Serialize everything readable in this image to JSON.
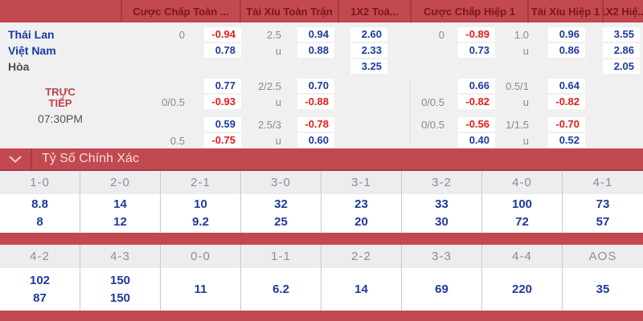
{
  "colors": {
    "accent_red": "#c24950",
    "header_text_red": "#7d151b",
    "divider_red": "#a63a42",
    "odds_blue": "#1c3a9e",
    "odds_negative_red": "#e81b1b",
    "line_gray": "#8a8a90",
    "panel_bg": "#f0f0f1",
    "score_header_text": "#8c8c94"
  },
  "odds_table": {
    "column_headers": [
      "Cược Chấp Toàn ...",
      "Tài Xỉu Toàn Trận",
      "1X2 Toà...",
      "Cược Chấp Hiệp 1",
      "Tài Xỉu Hiệp 1",
      "1X2 Hiệ..."
    ],
    "live_label": "TRỰC TIẾP",
    "kickoff_time": "07:30PM",
    "rows": [
      {
        "label": "Thái Lan",
        "label_style": "team",
        "cells": [
          {
            "t": "line",
            "v": "0"
          },
          {
            "t": "odds",
            "v": "-0.94"
          },
          {
            "t": "line",
            "v": "2.5"
          },
          {
            "t": "odds",
            "v": "0.94"
          },
          {
            "t": "odds",
            "v": "2.60"
          },
          {
            "t": "line",
            "v": "0"
          },
          {
            "t": "odds",
            "v": "-0.89"
          },
          {
            "t": "line",
            "v": "1.0"
          },
          {
            "t": "odds",
            "v": "0.96"
          },
          {
            "t": "odds",
            "v": "3.55"
          }
        ]
      },
      {
        "label": "Việt Nam",
        "label_style": "team",
        "cells": [
          {
            "t": "line",
            "v": ""
          },
          {
            "t": "odds",
            "v": "0.78"
          },
          {
            "t": "line",
            "v": "u"
          },
          {
            "t": "odds",
            "v": "0.88"
          },
          {
            "t": "odds",
            "v": "2.33"
          },
          {
            "t": "line",
            "v": ""
          },
          {
            "t": "odds",
            "v": "0.73"
          },
          {
            "t": "line",
            "v": "u"
          },
          {
            "t": "odds",
            "v": "0.86"
          },
          {
            "t": "odds",
            "v": "2.86"
          }
        ]
      },
      {
        "label": "Hòa",
        "label_style": "draw",
        "cells": [
          {
            "t": "line",
            "v": ""
          },
          {
            "t": "odds",
            "v": ""
          },
          {
            "t": "line",
            "v": ""
          },
          {
            "t": "odds",
            "v": ""
          },
          {
            "t": "odds",
            "v": "3.25"
          },
          {
            "t": "line",
            "v": ""
          },
          {
            "t": "odds",
            "v": ""
          },
          {
            "t": "line",
            "v": ""
          },
          {
            "t": "odds",
            "v": ""
          },
          {
            "t": "odds",
            "v": "2.05"
          }
        ]
      },
      {
        "gap": true
      },
      {
        "cells": [
          {
            "t": "line",
            "v": ""
          },
          {
            "t": "odds",
            "v": "0.77"
          },
          {
            "t": "line",
            "v": "2/2.5"
          },
          {
            "t": "odds",
            "v": "0.70"
          },
          {
            "t": "odds",
            "v": ""
          },
          {
            "t": "line",
            "v": ""
          },
          {
            "t": "odds",
            "v": "0.66"
          },
          {
            "t": "line",
            "v": "0.5/1"
          },
          {
            "t": "odds",
            "v": "0.64"
          },
          {
            "t": "odds",
            "v": ""
          }
        ]
      },
      {
        "cells": [
          {
            "t": "line",
            "v": "0/0.5"
          },
          {
            "t": "odds",
            "v": "-0.93"
          },
          {
            "t": "line",
            "v": "u"
          },
          {
            "t": "odds",
            "v": "-0.88"
          },
          {
            "t": "odds",
            "v": ""
          },
          {
            "t": "line",
            "v": "0/0.5"
          },
          {
            "t": "odds",
            "v": "-0.82"
          },
          {
            "t": "line",
            "v": "u"
          },
          {
            "t": "odds",
            "v": "-0.82"
          },
          {
            "t": "odds",
            "v": ""
          }
        ]
      },
      {
        "gap": true,
        "wide": true
      },
      {
        "cells": [
          {
            "t": "line",
            "v": ""
          },
          {
            "t": "odds",
            "v": "0.59"
          },
          {
            "t": "line",
            "v": "2.5/3"
          },
          {
            "t": "odds",
            "v": "-0.78"
          },
          {
            "t": "odds",
            "v": ""
          },
          {
            "t": "line",
            "v": "0/0.5"
          },
          {
            "t": "odds",
            "v": "-0.56"
          },
          {
            "t": "line",
            "v": "1/1.5"
          },
          {
            "t": "odds",
            "v": "-0.70"
          },
          {
            "t": "odds",
            "v": ""
          }
        ]
      },
      {
        "cells": [
          {
            "t": "line",
            "v": "0.5"
          },
          {
            "t": "odds",
            "v": "-0.75"
          },
          {
            "t": "line",
            "v": "u"
          },
          {
            "t": "odds",
            "v": "0.60"
          },
          {
            "t": "odds",
            "v": ""
          },
          {
            "t": "line",
            "v": ""
          },
          {
            "t": "odds",
            "v": "0.40"
          },
          {
            "t": "line",
            "v": "u"
          },
          {
            "t": "odds",
            "v": "0.52"
          },
          {
            "t": "odds",
            "v": ""
          }
        ]
      }
    ]
  },
  "correct_score": {
    "title": "Tỷ Số Chính Xác",
    "groups": [
      {
        "scores": [
          "1-0",
          "2-0",
          "2-1",
          "3-0",
          "3-1",
          "3-2",
          "4-0",
          "4-1"
        ],
        "odds": [
          [
            "8.8",
            "8"
          ],
          [
            "14",
            "12"
          ],
          [
            "10",
            "9.2"
          ],
          [
            "32",
            "25"
          ],
          [
            "23",
            "20"
          ],
          [
            "33",
            "30"
          ],
          [
            "100",
            "72"
          ],
          [
            "73",
            "57"
          ]
        ]
      },
      {
        "scores": [
          "4-2",
          "4-3",
          "0-0",
          "1-1",
          "2-2",
          "3-3",
          "4-4",
          "AOS"
        ],
        "odds": [
          [
            "102",
            "87"
          ],
          [
            "150",
            "150"
          ],
          [
            "11"
          ],
          [
            "6.2"
          ],
          [
            "14"
          ],
          [
            "69"
          ],
          [
            "220"
          ],
          [
            "35"
          ]
        ]
      }
    ]
  }
}
